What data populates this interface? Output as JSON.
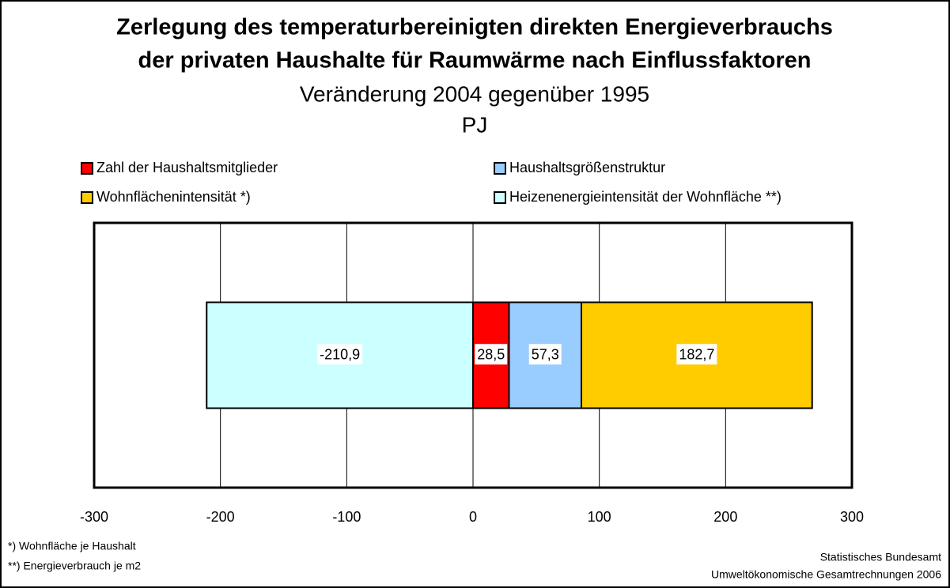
{
  "chart_data": {
    "type": "stacked_barh",
    "title": [
      "Zerlegung des temperaturbereinigten direkten Energieverbrauchs",
      "der privaten Haushalte für Raumwärme nach Einflussfaktoren"
    ],
    "subtitle": "Veränderung 2004 gegenüber 1995",
    "unit": "PJ",
    "categories": [
      null
    ],
    "series": [
      {
        "name": "Zahl der Haushaltsmitglieder",
        "color": "#ff0000",
        "values": [
          28.5
        ],
        "value_labels": [
          "28,5"
        ]
      },
      {
        "name": "Haushaltsgrößenstruktur",
        "color": "#99ccff",
        "values": [
          57.3
        ],
        "value_labels": [
          "57,3"
        ]
      },
      {
        "name": "Wohnflächenintensität *)",
        "color": "#ffcc00",
        "values": [
          182.7
        ],
        "value_labels": [
          "182,7"
        ]
      },
      {
        "name": "Heizenenergieintensität der Wohnfläche **)",
        "color": "#ccffff",
        "values": [
          -210.9
        ],
        "value_labels": [
          "-210,9"
        ]
      }
    ],
    "xlim": [
      -300,
      300
    ],
    "xticks": [
      -300,
      -200,
      -100,
      0,
      100,
      200,
      300
    ],
    "grid": true,
    "footnotes": [
      "*) Wohnfläche je Haushalt",
      "**) Energieverbrauch je m2"
    ],
    "source": [
      "Statistisches Bundesamt",
      "Umweltökonomische Gesamtrechnungen 2006"
    ]
  }
}
